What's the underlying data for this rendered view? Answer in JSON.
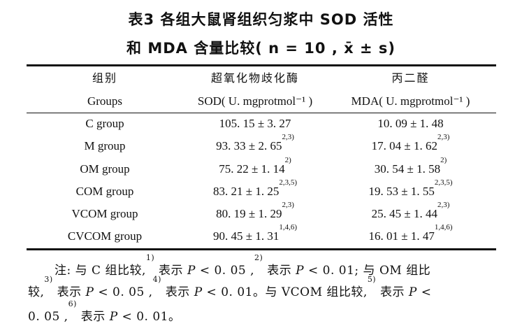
{
  "title": {
    "line1": "表3   各组大鼠肾组织匀浆中 SOD 活性",
    "line2": "和 MDA 含量比较( n = 10 , x̄ ± s)"
  },
  "table": {
    "header_cn": [
      "组别",
      "超氧化物歧化酶",
      "丙二醛"
    ],
    "header_en": [
      "Groups",
      "SOD( U. mgprotmol⁻¹ )",
      "MDA( U. mgprotmol⁻¹ )"
    ],
    "rows": [
      {
        "group": "C group",
        "sod": "105. 15 ± 3. 27",
        "sod_sup": "",
        "mda": "10. 09 ± 1. 48",
        "mda_sup": ""
      },
      {
        "group": "M group",
        "sod": "93. 33 ± 2. 65",
        "sod_sup": "2,3)",
        "mda": "17. 04 ± 1. 62",
        "mda_sup": "2,3)"
      },
      {
        "group": "OM group",
        "sod": "75. 22 ± 1. 14",
        "sod_sup": "2)",
        "mda": "30. 54 ± 1. 58",
        "mda_sup": "2)"
      },
      {
        "group": "COM group",
        "sod": "83. 21 ± 1. 25",
        "sod_sup": "2,3,5)",
        "mda": "19. 53 ± 1. 55",
        "mda_sup": "2,3,5)"
      },
      {
        "group": "VCOM group",
        "sod": "80. 19 ± 1. 29",
        "sod_sup": "2,3)",
        "mda": "25. 45 ± 1. 44",
        "mda_sup": "2,3)"
      },
      {
        "group": "CVCOM group",
        "sod": "90. 45 ± 1. 31",
        "sod_sup": "1,4,6)",
        "mda": "16. 01 ± 1. 47",
        "mda_sup": "1,4,6)"
      }
    ]
  },
  "note": {
    "line1": {
      "a": "注: 与 C 组比较,",
      "s1": "1)",
      "b": " 表示 ",
      "p1": "P",
      "c": " < 0. 05 ,",
      "s2": "2)",
      "d": " 表示 ",
      "p2": "P",
      "e": " < 0. 01; 与 OM 组比"
    },
    "line2": {
      "a": "较,",
      "s3": "3)",
      "b": " 表示 ",
      "p3": "P",
      "c": " < 0. 05 ,",
      "s4": "4)",
      "d": " 表示 ",
      "p4": "P",
      "e": " < 0. 01。与 VCOM 组比较,",
      "s5": "5)",
      "f": " 表示 ",
      "p5": "P",
      "g": " <"
    },
    "line3": {
      "a": "0. 05 ,",
      "s6": "6)",
      "b": " 表示 ",
      "p6": "P",
      "c": " < 0. 01。"
    }
  }
}
